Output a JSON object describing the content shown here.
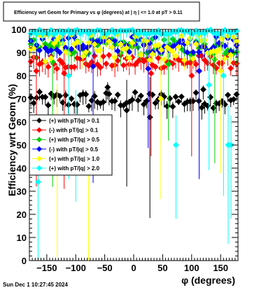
{
  "chart_data": {
    "type": "scatter",
    "title": "Efficiency wrt Geom for Primary vs φ (degrees) at | η | <= 1.0 at pT > 0.11",
    "xlabel": "φ (degrees)",
    "ylabel": "Efficiency wrt Geom (%)",
    "xlim": [
      -180,
      180
    ],
    "ylim": [
      0,
      100
    ],
    "x_ticks": [
      -150,
      -100,
      -50,
      0,
      50,
      100,
      150
    ],
    "x_tick_labels": [
      "−150",
      "−100",
      "−50",
      "0",
      "50",
      "100",
      "150"
    ],
    "y_ticks": [
      0,
      10,
      20,
      30,
      40,
      50,
      60,
      70,
      80,
      90,
      100
    ],
    "y_tick_labels": [
      "0",
      "10",
      "20",
      "30",
      "40",
      "50",
      "60",
      "70",
      "80",
      "90",
      "100"
    ],
    "grid": false,
    "legend_position": "left-middle",
    "series": [
      {
        "name": "(+) with pT/|q| > 0.1",
        "color": "#000000",
        "marker": "diamond",
        "band": [
          66,
          73
        ],
        "outliers": [
          [
            -12,
            65
          ],
          [
            28,
            62
          ],
          [
            -45,
            75
          ],
          [
            120,
            74
          ]
        ]
      },
      {
        "name": "(-) with pT/|q| > 0.1",
        "color": "#ff0000",
        "marker": "diamond",
        "band": [
          83,
          89
        ],
        "outliers": [
          [
            -168,
            82
          ],
          [
            -120,
            81
          ],
          [
            30,
            81
          ],
          [
            100,
            80
          ]
        ]
      },
      {
        "name": "(+) with pT/|q| > 0.5",
        "color": "#00cc00",
        "marker": "diamond",
        "band": [
          89,
          96
        ],
        "outliers": [
          [
            -140,
            86
          ],
          [
            60,
            85
          ],
          [
            140,
            87
          ]
        ]
      },
      {
        "name": "(-) with pT/|q| > 0.5",
        "color": "#0000ff",
        "marker": "diamond",
        "band": [
          90,
          97
        ],
        "outliers": [
          [
            -70,
            84
          ],
          [
            25,
            83
          ],
          [
            113,
            82
          ]
        ]
      },
      {
        "name": "(+) with pT/|q| > 1.0",
        "color": "#ffff00",
        "marker": "diamond",
        "band": [
          86,
          98
        ],
        "outliers": [
          [
            -78,
            38
          ],
          [
            -132,
            55
          ],
          [
            47,
            70
          ],
          [
            150,
            82
          ]
        ]
      },
      {
        "name": "(+) with pT/|q| > 2.0",
        "color": "#00ffff",
        "marker": "diamond",
        "band": [
          98,
          100
        ],
        "outliers": [
          [
            -165,
            34
          ],
          [
            -112,
            80
          ],
          [
            -100,
            60
          ],
          [
            73,
            50
          ],
          [
            130,
            76
          ],
          [
            163,
            50
          ],
          [
            168,
            50
          ],
          [
            155,
            80
          ]
        ]
      }
    ]
  },
  "footer_text": "Sun Dec  1 10:27:45 2024"
}
